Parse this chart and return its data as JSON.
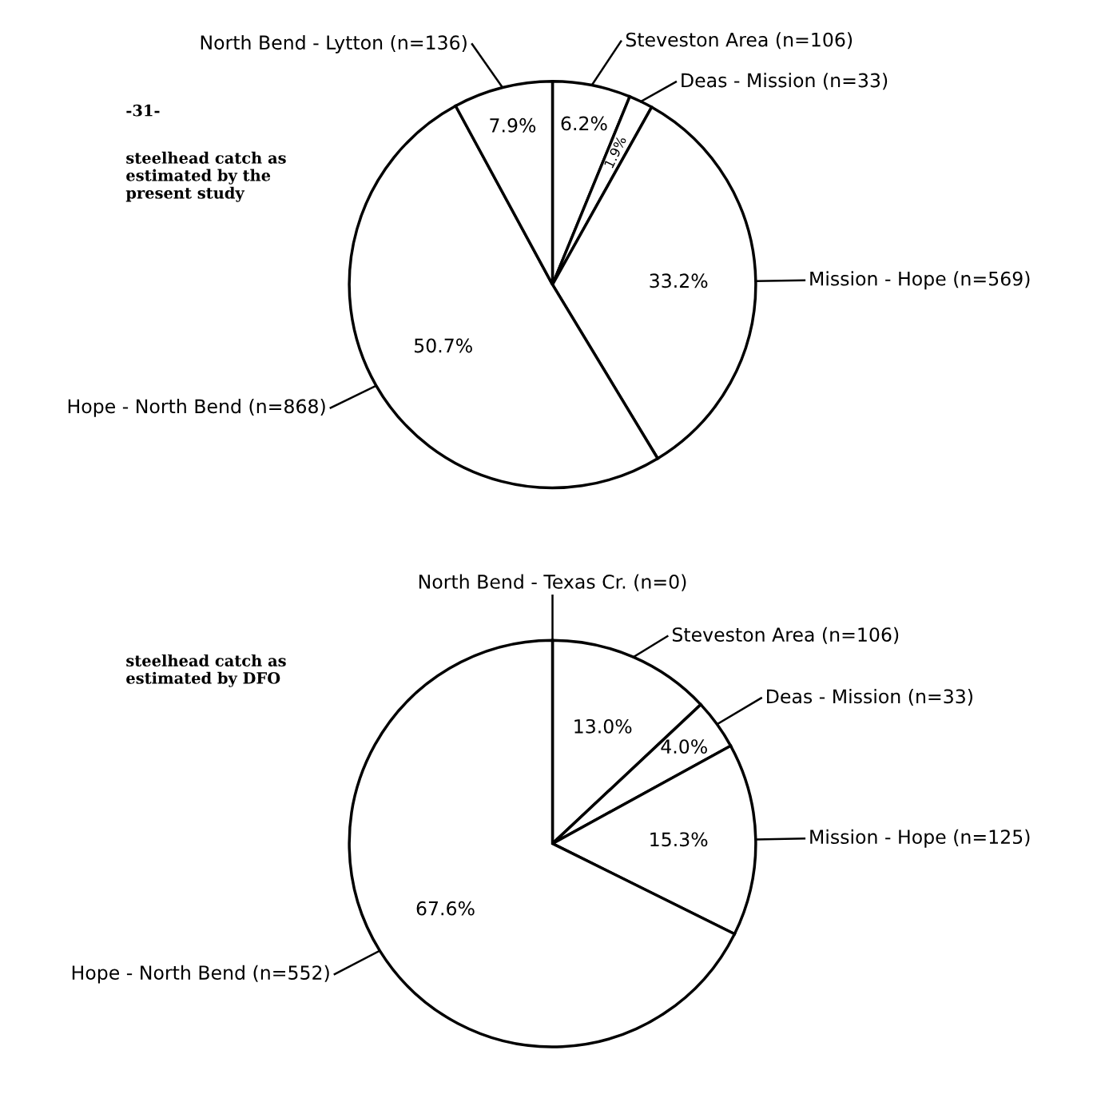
{
  "chart_data": [
    {
      "type": "pie",
      "categories": [
        "Steveston Area (n=106)",
        "Deas - Mission (n=33)",
        "Mission - Hope (n=569)",
        "Hope - North Bend (n=868)",
        "North Bend - Lytton (n=136)"
      ],
      "values": [
        6.2,
        1.9,
        33.2,
        50.7,
        7.9
      ],
      "value_labels": [
        "6.2%",
        "1.9%",
        "33.2%",
        "50.7%",
        "7.9%"
      ],
      "colors": [
        "#ffffff",
        "#ffffff",
        "#ffffff",
        "#ffffff",
        "#ffffff"
      ],
      "annotations": [
        "-31-",
        "steelhead catch as\nestimated by the\npresent study"
      ]
    },
    {
      "type": "pie",
      "categories": [
        "North Bend - Texas Cr. (n=0)",
        "Steveston Area (n=106)",
        "Deas - Mission (n=33)",
        "Mission - Hope (n=125)",
        "Hope - North Bend (n=552)"
      ],
      "values": [
        0,
        13.0,
        4.0,
        15.3,
        67.6
      ],
      "value_labels": [
        null,
        "13.0%",
        "4.0%",
        "15.3%",
        "67.6%"
      ],
      "colors": [
        "#ffffff",
        "#ffffff",
        "#ffffff",
        "#ffffff",
        "#ffffff"
      ],
      "annotations": [
        "steelhead catch as\nestimated by DFO"
      ]
    }
  ]
}
